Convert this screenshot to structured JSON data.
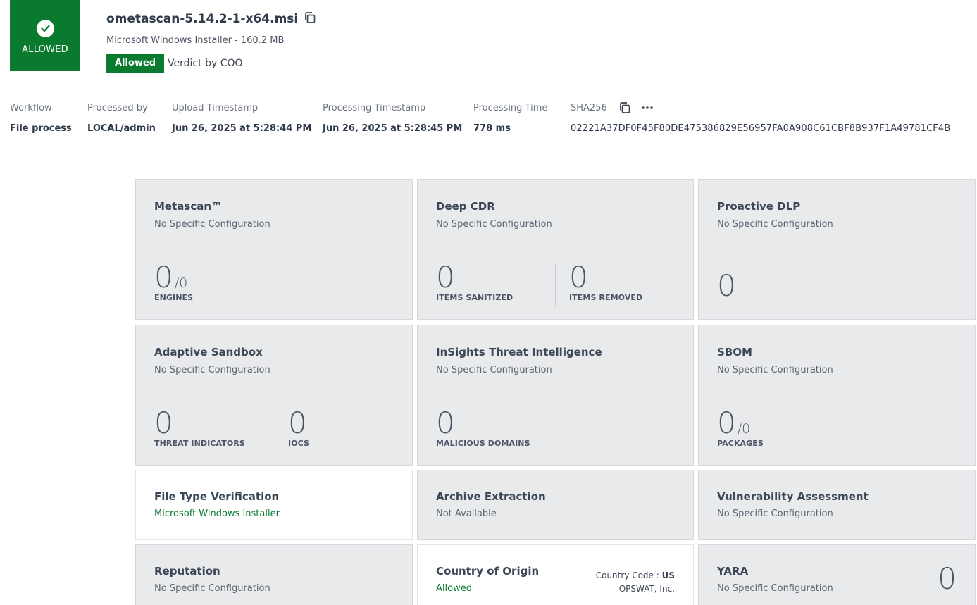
{
  "verdict": {
    "label": "ALLOWED"
  },
  "file": {
    "name": "ometascan-5.14.2-1-x64.msi",
    "type_size": "Microsoft Windows Installer - 160.2 MB",
    "badge": "Allowed",
    "verdict_by": "Verdict by COO"
  },
  "meta": {
    "workflow": {
      "label": "Workflow",
      "value": "File process"
    },
    "processed_by": {
      "label": "Processed by",
      "value": "LOCAL/admin"
    },
    "upload": {
      "label": "Upload Timestamp",
      "value": "Jun 26, 2025 at 5:28:44 PM"
    },
    "processing_ts": {
      "label": "Processing Timestamp",
      "value": "Jun 26, 2025 at 5:28:45 PM"
    },
    "processing_time": {
      "label": "Processing Time",
      "value": "778 ms"
    },
    "sha256": {
      "label": "SHA256",
      "value": "02221A37DF0F45F80DE475386829E56957FA0A908C61CBF8B937F1A49781CF4B"
    }
  },
  "cards": {
    "metascan": {
      "title": "Metascan™",
      "sub": "No Specific Configuration",
      "value": "0",
      "denom": "/0",
      "label": "ENGINES"
    },
    "deepcdr": {
      "title": "Deep CDR",
      "sub": "No Specific Configuration",
      "value1": "0",
      "label1": "ITEMS SANITIZED",
      "value2": "0",
      "label2": "ITEMS REMOVED"
    },
    "dlp": {
      "title": "Proactive DLP",
      "sub": "No Specific Configuration",
      "value": "0"
    },
    "sandbox": {
      "title": "Adaptive Sandbox",
      "sub": "No Specific Configuration",
      "value1": "0",
      "label1": "THREAT INDICATORS",
      "value2": "0",
      "label2": "IOCS"
    },
    "insights": {
      "title": "InSights Threat Intelligence",
      "sub": "No Specific Configuration",
      "value": "0",
      "label": "MALICIOUS DOMAINS"
    },
    "sbom": {
      "title": "SBOM",
      "sub": "No Specific Configuration",
      "value": "0",
      "denom": "/0",
      "label": "PACKAGES"
    },
    "filetype": {
      "title": "File Type Verification",
      "sub": "Microsoft Windows Installer"
    },
    "archive": {
      "title": "Archive Extraction",
      "sub": "Not Available"
    },
    "vuln": {
      "title": "Vulnerability Assessment",
      "sub": "No Specific Configuration"
    },
    "reputation": {
      "title": "Reputation",
      "sub": "No Specific Configuration"
    },
    "coo": {
      "title": "Country of Origin",
      "sub": "Allowed",
      "code_label": "Country Code : ",
      "code": "US",
      "vendor": "OPSWAT, Inc."
    },
    "yara": {
      "title": "YARA",
      "sub": "No Specific Configuration",
      "value": "0"
    }
  },
  "colors": {
    "green": "#0a7a2f",
    "card_bg": "#e9eaec"
  }
}
